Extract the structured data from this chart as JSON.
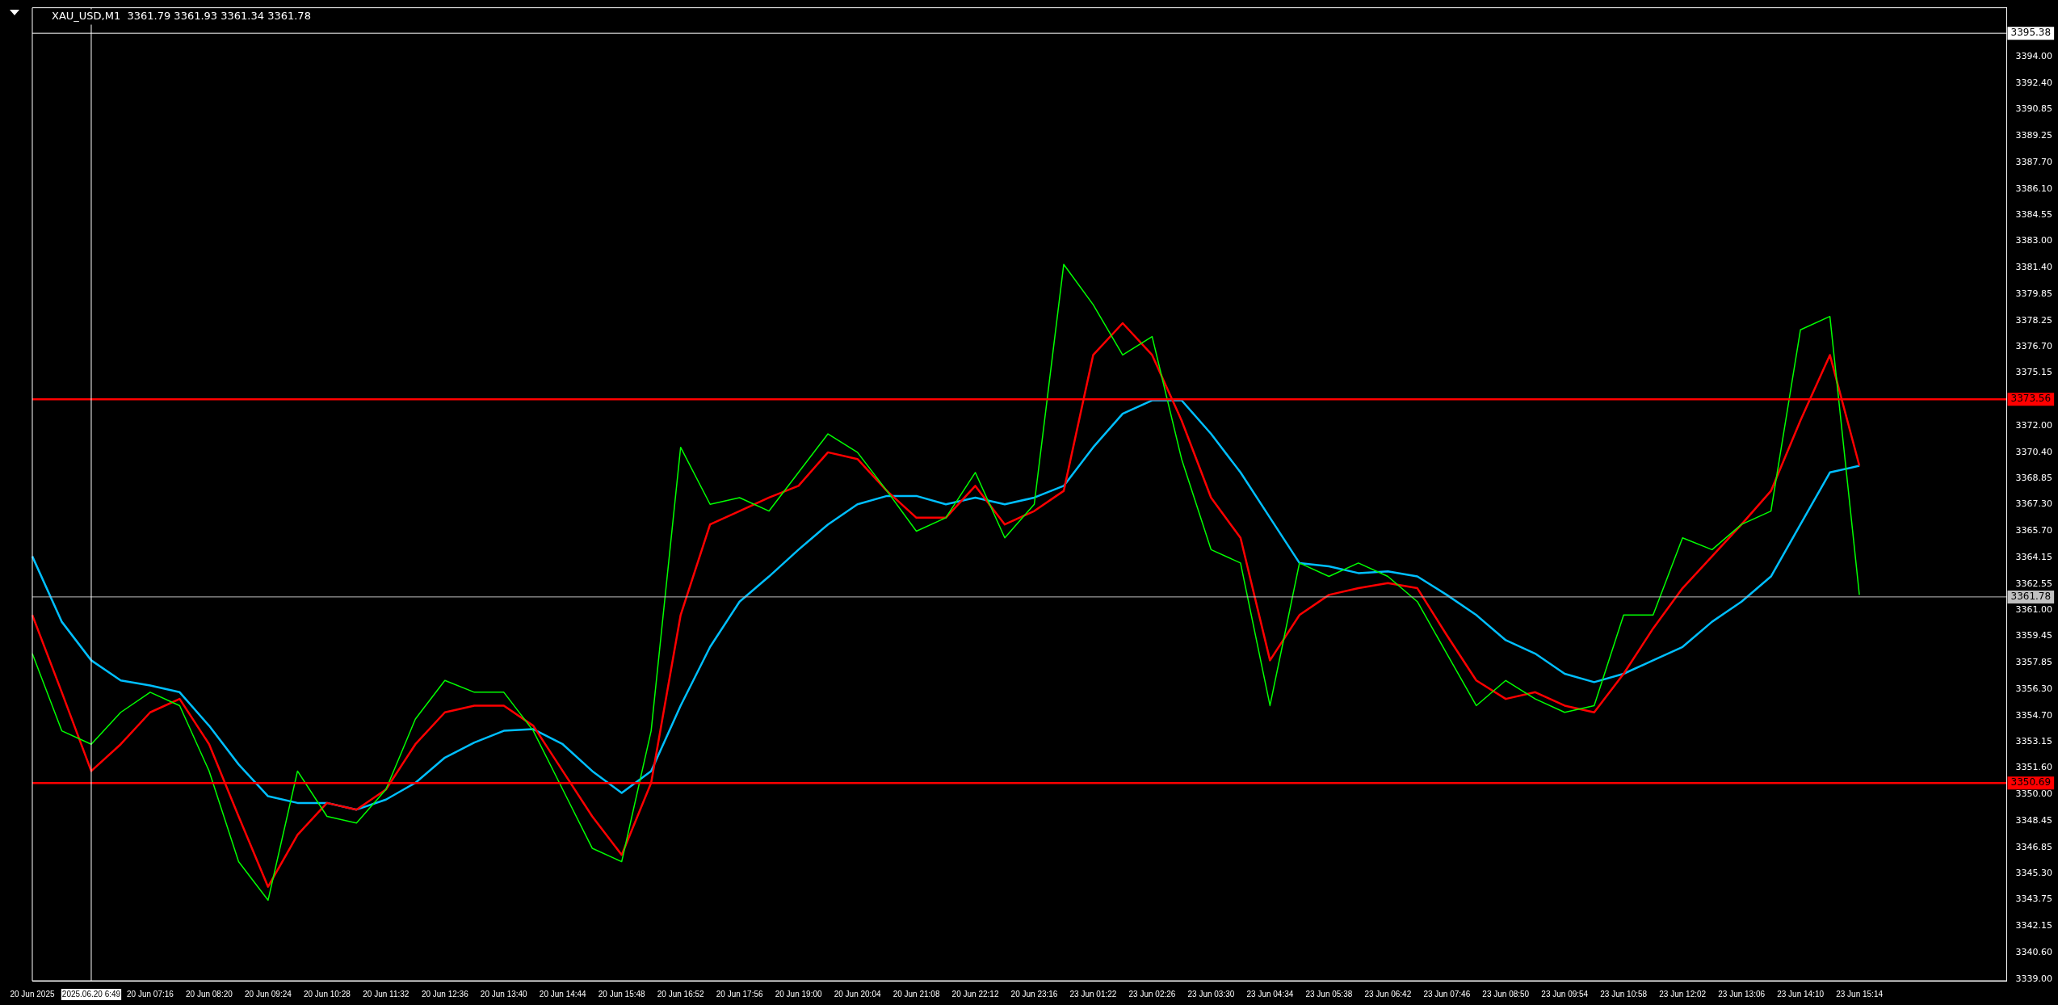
{
  "chart_data": {
    "type": "line",
    "title": "XAU_USD,M1  3361.79 3361.93 3361.34 3361.78",
    "categories": [
      "20 Jun 2025",
      null,
      "2025.06.20 6:49",
      null,
      "20 Jun 07:16",
      null,
      "20 Jun 08:20",
      null,
      "20 Jun 09:24",
      null,
      "20 Jun 10:28",
      null,
      "20 Jun 11:32",
      null,
      "20 Jun 12:36",
      null,
      "20 Jun 13:40",
      null,
      "20 Jun 14:44",
      null,
      "20 Jun 15:48",
      null,
      "20 Jun 16:52",
      null,
      "20 Jun 17:56",
      null,
      "20 Jun 19:00",
      null,
      "20 Jun 20:04",
      null,
      "20 Jun 21:08",
      null,
      "20 Jun 22:12",
      null,
      "20 Jun 23:16",
      null,
      "23 Jun 01:22",
      null,
      "23 Jun 02:26",
      null,
      "23 Jun 03:30",
      null,
      "23 Jun 04:34",
      null,
      "23 Jun 05:38",
      null,
      "23 Jun 06:42",
      null,
      "23 Jun 07:46",
      null,
      "23 Jun 08:50",
      null,
      "23 Jun 09:54",
      null,
      "23 Jun 10:58",
      null,
      "23 Jun 12:02",
      null,
      "23 Jun 13:06",
      null,
      "23 Jun 14:10",
      null,
      "23 Jun 15:14",
      null,
      null,
      null,
      null,
      null
    ],
    "series": [
      {
        "color": "#00ff00",
        "values": [
          3358.4,
          3353.8,
          3353,
          3354.9,
          3356.1,
          3355.3,
          3351.4,
          3346,
          3343.7,
          3351.4,
          3348.7,
          3348.3,
          3350.3,
          3354.5,
          3356.8,
          3356.1,
          3356.1,
          3353.8,
          3350.3,
          3346.8,
          3346,
          3353.8,
          3370.7,
          3367.3,
          3367.7,
          3366.9,
          3369.2,
          3371.5,
          3370.4,
          3368.1,
          3365.7,
          3366.5,
          3369.2,
          3365.3,
          3367.3,
          3381.6,
          3379.2,
          3376.2,
          3377.3,
          3370,
          3364.6,
          3363.8,
          3355.3,
          3363.8,
          3363,
          3363.8,
          3363,
          3361.5,
          3358.4,
          3355.3,
          3356.8,
          3355.7,
          3354.9,
          3355.3,
          3360.7,
          3360.7,
          3365.3,
          3364.6,
          3366.1,
          3366.9,
          3377.7,
          3378.5,
          3361.9,
          null,
          null,
          null,
          null,
          null
        ]
      },
      {
        "color": "#ff0000",
        "values": [
          3360.7,
          3356.1,
          3351.4,
          3353,
          3354.9,
          3355.7,
          3353,
          3348.7,
          3344.5,
          3347.6,
          3349.5,
          3349.1,
          3350.3,
          3353,
          3354.9,
          3355.3,
          3355.3,
          3354.1,
          3351.4,
          3348.7,
          3346.4,
          3350.7,
          3360.7,
          3366.1,
          3366.9,
          3367.7,
          3368.4,
          3370.4,
          3370,
          3368.1,
          3366.5,
          3366.5,
          3368.4,
          3366.1,
          3366.9,
          3368.1,
          3376.2,
          3378.1,
          3376.2,
          3372.3,
          3367.7,
          3365.3,
          3358,
          3360.7,
          3361.9,
          3362.3,
          3362.6,
          3362.3,
          3359.5,
          3356.8,
          3355.7,
          3356.1,
          3355.3,
          3354.9,
          3357.2,
          3359.9,
          3362.3,
          3364.2,
          3366.1,
          3368.1,
          3372.3,
          3376.2,
          3369.6,
          null,
          null,
          null,
          null,
          null
        ]
      },
      {
        "color": "#00bfff",
        "values": [
          3364.2,
          3360.3,
          3358,
          3356.8,
          3356.5,
          3356.1,
          3354.1,
          3351.8,
          3349.9,
          3349.5,
          3349.5,
          3349.1,
          3349.7,
          3350.7,
          3352.2,
          3353.1,
          3353.8,
          3353.9,
          3353,
          3351.4,
          3350.1,
          3351.4,
          3355.3,
          3358.8,
          3361.5,
          3363,
          3364.6,
          3366.1,
          3367.3,
          3367.8,
          3367.8,
          3367.3,
          3367.7,
          3367.3,
          3367.7,
          3368.4,
          3370.7,
          3372.7,
          3373.5,
          3373.5,
          3371.5,
          3369.2,
          3366.5,
          3363.8,
          3363.6,
          3363.2,
          3363.3,
          3363,
          3361.9,
          3360.7,
          3359.2,
          3358.4,
          3357.2,
          3356.7,
          3357.2,
          3358,
          3358.8,
          3360.3,
          3361.5,
          3363,
          3366.1,
          3369.2,
          3369.6,
          null,
          null,
          null,
          null,
          null
        ]
      }
    ],
    "ylim": [
      3338.9,
      3396.9
    ],
    "yticks": [
      {
        "value": 3339,
        "label": "3339.00"
      },
      {
        "value": 3340.6,
        "label": "3340.60"
      },
      3342.15,
      3343.75,
      {
        "value": 3345.3,
        "label": "3345.30"
      },
      3346.85,
      3348.45,
      {
        "value": 3350,
        "label": "3350.00"
      },
      {
        "value": 3351.6,
        "label": "3351.60"
      },
      3353.15,
      {
        "value": 3354.7,
        "label": "3354.70"
      },
      {
        "value": 3356.3,
        "label": "3356.30"
      },
      3357.85,
      3359.45,
      {
        "value": 3361,
        "label": "3361.00"
      },
      3362.55,
      3364.15,
      {
        "value": 3365.7,
        "label": "3365.70"
      },
      {
        "value": 3367.3,
        "label": "3367.30"
      },
      3368.85,
      {
        "value": 3370.4,
        "label": "3370.40"
      },
      {
        "value": 3372,
        "label": "3372.00"
      },
      3375.15,
      {
        "value": 3376.7,
        "label": "3376.70"
      },
      3378.25,
      3379.85,
      {
        "value": 3381.4,
        "label": "3381.40"
      },
      {
        "value": 3383,
        "label": "3383.00"
      },
      3384.55,
      {
        "value": 3386.1,
        "label": "3386.10"
      },
      {
        "value": 3387.7,
        "label": "3387.70"
      },
      3389.25,
      3390.85,
      {
        "value": 3392.4,
        "label": "3392.40"
      },
      {
        "value": 3394,
        "label": "3394.00"
      }
    ],
    "ref_lines": [
      {
        "axis": "y",
        "value": 3373.56,
        "label": "3373.56",
        "color": "#ff0000"
      },
      {
        "axis": "y",
        "value": 3350.69,
        "label": "3350.69",
        "color": "#ff0000"
      },
      {
        "axis": "y",
        "value": 3361.78,
        "label": "3361.78",
        "color": "#c0c0c0"
      },
      {
        "axis": "y",
        "value": 3395.38,
        "label": "3395.38",
        "color": "#ffffff"
      },
      {
        "axis": "x",
        "value": "2025.06.20 6:49",
        "color": "#ffffff"
      }
    ],
    "grid": false,
    "legend": false,
    "marker": "none",
    "line_style": "solid"
  }
}
